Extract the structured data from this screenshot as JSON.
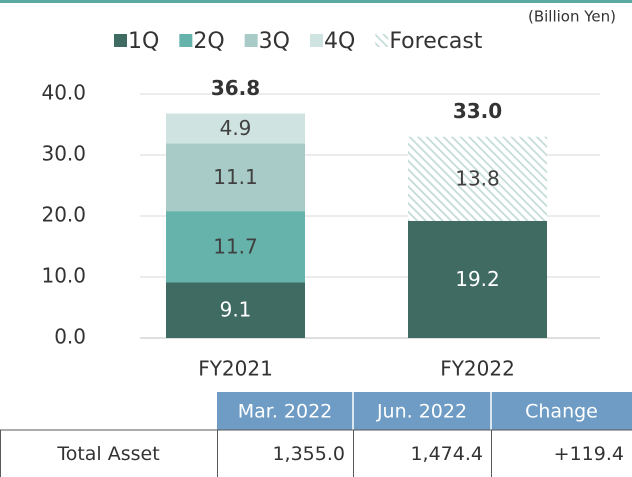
{
  "chart_data": {
    "type": "stacked_bar",
    "unit": "(Billion Yen)",
    "categories": [
      "FY2021",
      "FY2022"
    ],
    "series": [
      {
        "name": "1Q",
        "color": "#3f6b63",
        "values": [
          9.1,
          19.2
        ]
      },
      {
        "name": "2Q",
        "color": "#66b3ab",
        "values": [
          11.7,
          null
        ]
      },
      {
        "name": "3Q",
        "color": "#a9cbc7",
        "values": [
          11.1,
          null
        ]
      },
      {
        "name": "4Q",
        "color": "#cfe3e0",
        "values": [
          4.9,
          null
        ]
      },
      {
        "name": "Forecast",
        "color": "#c3dbd7",
        "hatch": true,
        "values": [
          null,
          13.8
        ]
      }
    ],
    "totals": [
      36.8,
      33.0
    ],
    "total_labels": [
      "36.8",
      "33.0"
    ],
    "ylim": [
      0,
      40
    ],
    "yticks": [
      {
        "value": 0,
        "label": "0.0"
      },
      {
        "value": 10,
        "label": "10.0"
      },
      {
        "value": 20,
        "label": "20.0"
      },
      {
        "value": 30,
        "label": "30.0"
      },
      {
        "value": 40,
        "label": "40.0"
      }
    ],
    "grid": true,
    "legend": "top"
  },
  "table": {
    "header": [
      "Mar. 2022",
      "Jun. 2022",
      "Change"
    ],
    "rows": [
      [
        "Total Asset",
        "1,355.0",
        "1,474.4",
        "+119.4"
      ]
    ]
  }
}
